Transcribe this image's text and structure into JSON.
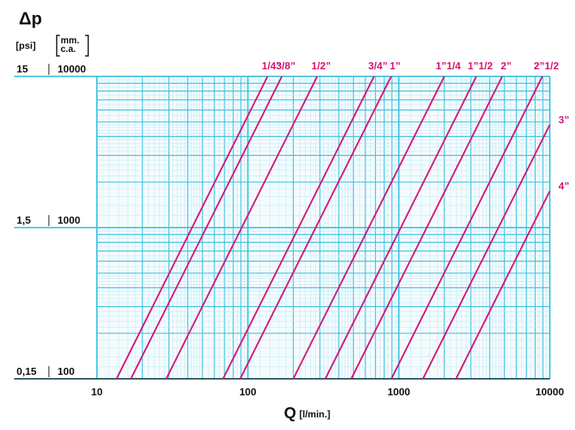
{
  "chart_data": {
    "type": "line",
    "title": "Δp",
    "y_unit_psi": "[psi]",
    "y_unit_mm": "mm.\nc.a.",
    "xlabel": "Q",
    "xlabel_unit": "[l/min.]",
    "log_x": true,
    "log_y": true,
    "grid": true,
    "xlim": [
      10,
      10000
    ],
    "xticks": [
      10,
      100,
      1000,
      10000
    ],
    "ylim": [
      100,
      10000
    ],
    "yticks": [
      100,
      1000,
      10000
    ],
    "y_psi_labels": [
      "0,15",
      "1,5",
      "15"
    ],
    "series": [
      {
        "name": "1/4”",
        "color": "#d6137a",
        "x": [
          13.5,
          135
        ],
        "values": [
          100,
          10000
        ]
      },
      {
        "name": "3/8”",
        "color": "#d6137a",
        "x": [
          16.8,
          168
        ],
        "values": [
          100,
          10000
        ]
      },
      {
        "name": "1/2”",
        "color": "#d6137a",
        "x": [
          28.8,
          288
        ],
        "values": [
          100,
          10000
        ]
      },
      {
        "name": "3/4”",
        "color": "#d6137a",
        "x": [
          68.5,
          685
        ],
        "values": [
          100,
          10000
        ]
      },
      {
        "name": "1”",
        "color": "#d6137a",
        "x": [
          89,
          890
        ],
        "values": [
          100,
          10000
        ]
      },
      {
        "name": "1”1/4",
        "color": "#d6137a",
        "x": [
          200,
          2000
        ],
        "values": [
          100,
          10000
        ]
      },
      {
        "name": "1”1/2",
        "color": "#d6137a",
        "x": [
          326,
          3260
        ],
        "values": [
          100,
          10000
        ]
      },
      {
        "name": "2”",
        "color": "#d6137a",
        "x": [
          484,
          4840
        ],
        "values": [
          100,
          10000
        ]
      },
      {
        "name": "2”1/2",
        "color": "#d6137a",
        "x": [
          893,
          8930
        ],
        "values": [
          100,
          10000
        ]
      },
      {
        "name": "3”",
        "color": "#d6137a",
        "x": [
          1445,
          10000
        ],
        "values": [
          100,
          4789
        ]
      },
      {
        "name": "4”",
        "color": "#d6137a",
        "x": [
          2393,
          10000
        ],
        "values": [
          100,
          1746
        ]
      }
    ]
  }
}
